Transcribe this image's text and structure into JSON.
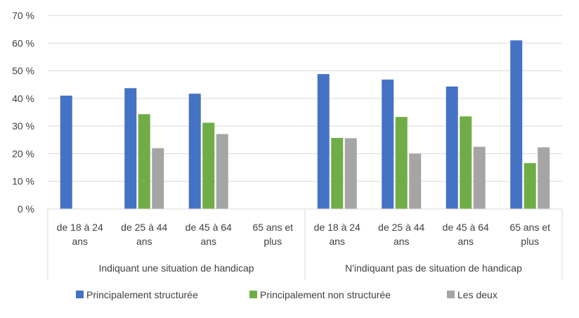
{
  "chart_data": {
    "type": "bar",
    "yticks": [
      "0 %",
      "10 %",
      "20 %",
      "30 %",
      "40 %",
      "50 %",
      "60 %",
      "70 %"
    ],
    "ylim": [
      0,
      70
    ],
    "grid": true,
    "legend_position": "bottom",
    "groups": [
      {
        "label": "Indiquant une situation de handicap",
        "categories": [
          [
            "de 18 à 24",
            "ans"
          ],
          [
            "de 25 à 44",
            "ans"
          ],
          [
            "de 45 à 64",
            "ans"
          ],
          [
            "65 ans et",
            "plus"
          ]
        ]
      },
      {
        "label": "N'indiquant pas de situation de handicap",
        "categories": [
          [
            "de 18 à 24",
            "ans"
          ],
          [
            "de 25 à 44",
            "ans"
          ],
          [
            "de 45 à 64",
            "ans"
          ],
          [
            "65 ans et",
            "plus"
          ]
        ]
      }
    ],
    "series": [
      {
        "name": "Principalement structurée",
        "color": "#4472c4",
        "values": [
          41,
          43.7,
          41.7,
          null,
          48.8,
          46.8,
          44.3,
          61
        ]
      },
      {
        "name": "Principalement non structurée",
        "color": "#70ad47",
        "values": [
          null,
          34.3,
          31.2,
          null,
          25.7,
          33.3,
          33.5,
          16.6
        ]
      },
      {
        "name": "Les deux",
        "color": "#a5a5a5",
        "values": [
          null,
          22,
          27.1,
          null,
          25.6,
          20,
          22.5,
          22.3
        ]
      }
    ]
  }
}
